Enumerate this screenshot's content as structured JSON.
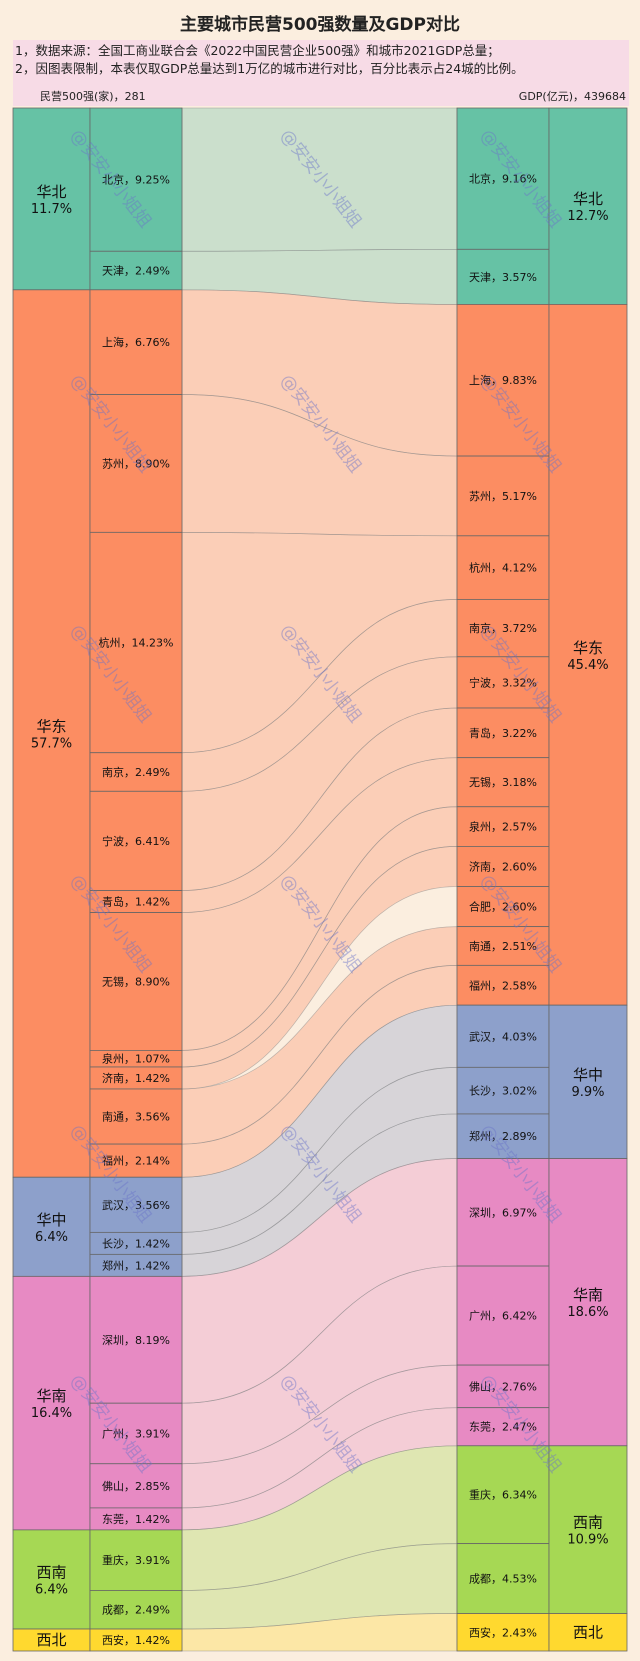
{
  "title": "主要城市民营500强数量及GDP对比",
  "notes": [
    "1，数据来源：全国工商业联合会《2022中国民营企业500强》和城市2021GDP总量；",
    "2，因图表限制，本表仅取GDP总量达到1万亿的城市进行对比，百分比表示占24城的比例。"
  ],
  "left_header": "民营500强(家)，281",
  "right_header": "GDP(亿元)，439684",
  "watermark": "@安安小小姐姐",
  "colors": {
    "华北": "#66c2a5",
    "华东": "#fc8d62",
    "华中": "#8da0cb",
    "华南": "#e78ac3",
    "西南": "#a6d854",
    "西北": "#ffd92f"
  },
  "chart_data": {
    "type": "sankey",
    "left_total": 281,
    "right_total": 439684,
    "left_regions": [
      {
        "name": "华北",
        "label": "华北",
        "pct": "11.7%"
      },
      {
        "name": "华东",
        "label": "华东",
        "pct": "57.7%"
      },
      {
        "name": "华中",
        "label": "华中",
        "pct": "6.4%"
      },
      {
        "name": "华南",
        "label": "华南",
        "pct": "16.4%"
      },
      {
        "name": "西南",
        "label": "西南",
        "pct": "6.4%"
      },
      {
        "name": "西北",
        "label": "西北",
        "pct": ""
      }
    ],
    "right_regions": [
      {
        "name": "华北",
        "label": "华北",
        "pct": "12.7%"
      },
      {
        "name": "华东",
        "label": "华东",
        "pct": "45.4%"
      },
      {
        "name": "华中",
        "label": "华中",
        "pct": "9.9%"
      },
      {
        "name": "华南",
        "label": "华南",
        "pct": "18.6%"
      },
      {
        "name": "西南",
        "label": "西南",
        "pct": "10.9%"
      },
      {
        "name": "西北",
        "label": "西北",
        "pct": ""
      }
    ],
    "left": [
      {
        "city": "北京",
        "region": "华北",
        "pct": 9.25,
        "label": "北京，9.25%"
      },
      {
        "city": "天津",
        "region": "华北",
        "pct": 2.49,
        "label": "天津，2.49%"
      },
      {
        "city": "上海",
        "region": "华东",
        "pct": 6.76,
        "label": "上海，6.76%"
      },
      {
        "city": "苏州",
        "region": "华东",
        "pct": 8.9,
        "label": "苏州，8.90%"
      },
      {
        "city": "杭州",
        "region": "华东",
        "pct": 14.23,
        "label": "杭州，14.23%"
      },
      {
        "city": "南京",
        "region": "华东",
        "pct": 2.49,
        "label": "南京，2.49%"
      },
      {
        "city": "宁波",
        "region": "华东",
        "pct": 6.41,
        "label": "宁波，6.41%"
      },
      {
        "city": "青岛",
        "region": "华东",
        "pct": 1.42,
        "label": "青岛，1.42%"
      },
      {
        "city": "无锡",
        "region": "华东",
        "pct": 8.9,
        "label": "无锡，8.90%"
      },
      {
        "city": "泉州",
        "region": "华东",
        "pct": 1.07,
        "label": "泉州，1.07%"
      },
      {
        "city": "济南",
        "region": "华东",
        "pct": 1.42,
        "label": "济南，1.42%"
      },
      {
        "city": "南通",
        "region": "华东",
        "pct": 3.56,
        "label": "南通，3.56%"
      },
      {
        "city": "福州",
        "region": "华东",
        "pct": 2.14,
        "label": "福州，2.14%"
      },
      {
        "city": "武汉",
        "region": "华中",
        "pct": 3.56,
        "label": "武汉，3.56%"
      },
      {
        "city": "长沙",
        "region": "华中",
        "pct": 1.42,
        "label": "长沙，1.42%"
      },
      {
        "city": "郑州",
        "region": "华中",
        "pct": 1.42,
        "label": "郑州，1.42%"
      },
      {
        "city": "深圳",
        "region": "华南",
        "pct": 8.19,
        "label": "深圳，8.19%"
      },
      {
        "city": "广州",
        "region": "华南",
        "pct": 3.91,
        "label": "广州，3.91%"
      },
      {
        "city": "佛山",
        "region": "华南",
        "pct": 2.85,
        "label": "佛山，2.85%"
      },
      {
        "city": "东莞",
        "region": "华南",
        "pct": 1.42,
        "label": "东莞，1.42%"
      },
      {
        "city": "重庆",
        "region": "西南",
        "pct": 3.91,
        "label": "重庆，3.91%"
      },
      {
        "city": "成都",
        "region": "西南",
        "pct": 2.49,
        "label": "成都，2.49%"
      },
      {
        "city": "西安",
        "region": "西北",
        "pct": 1.42,
        "label": "西安，1.42%"
      }
    ],
    "right": [
      {
        "city": "北京",
        "region": "华北",
        "pct": 9.16,
        "label": "北京，9.16%"
      },
      {
        "city": "天津",
        "region": "华北",
        "pct": 3.57,
        "label": "天津，3.57%"
      },
      {
        "city": "上海",
        "region": "华东",
        "pct": 9.83,
        "label": "上海，9.83%"
      },
      {
        "city": "苏州",
        "region": "华东",
        "pct": 5.17,
        "label": "苏州，5.17%"
      },
      {
        "city": "杭州",
        "region": "华东",
        "pct": 4.12,
        "label": "杭州，4.12%"
      },
      {
        "city": "南京",
        "region": "华东",
        "pct": 3.72,
        "label": "南京，3.72%"
      },
      {
        "city": "宁波",
        "region": "华东",
        "pct": 3.32,
        "label": "宁波，3.32%"
      },
      {
        "city": "青岛",
        "region": "华东",
        "pct": 3.22,
        "label": "青岛，3.22%"
      },
      {
        "city": "无锡",
        "region": "华东",
        "pct": 3.18,
        "label": "无锡，3.18%"
      },
      {
        "city": "泉州",
        "region": "华东",
        "pct": 2.57,
        "label": "泉州，2.57%"
      },
      {
        "city": "济南",
        "region": "华东",
        "pct": 2.6,
        "label": "济南，2.60%"
      },
      {
        "city": "合肥",
        "region": "华东",
        "pct": 2.6,
        "label": "合肥，2.60%"
      },
      {
        "city": "南通",
        "region": "华东",
        "pct": 2.51,
        "label": "南通，2.51%"
      },
      {
        "city": "福州",
        "region": "华东",
        "pct": 2.58,
        "label": "福州，2.58%"
      },
      {
        "city": "武汉",
        "region": "华中",
        "pct": 4.03,
        "label": "武汉，4.03%"
      },
      {
        "city": "长沙",
        "region": "华中",
        "pct": 3.02,
        "label": "长沙，3.02%"
      },
      {
        "city": "郑州",
        "region": "华中",
        "pct": 2.89,
        "label": "郑州，2.89%"
      },
      {
        "city": "深圳",
        "region": "华南",
        "pct": 6.97,
        "label": "深圳，6.97%"
      },
      {
        "city": "广州",
        "region": "华南",
        "pct": 6.42,
        "label": "广州，6.42%"
      },
      {
        "city": "佛山",
        "region": "华南",
        "pct": 2.76,
        "label": "佛山，2.76%"
      },
      {
        "city": "东莞",
        "region": "华南",
        "pct": 2.47,
        "label": "东莞，2.47%"
      },
      {
        "city": "重庆",
        "region": "西南",
        "pct": 6.34,
        "label": "重庆，6.34%"
      },
      {
        "city": "成都",
        "region": "西南",
        "pct": 4.53,
        "label": "成都，4.53%"
      },
      {
        "city": "西安",
        "region": "西北",
        "pct": 2.43,
        "label": "西安，2.43%"
      }
    ]
  }
}
